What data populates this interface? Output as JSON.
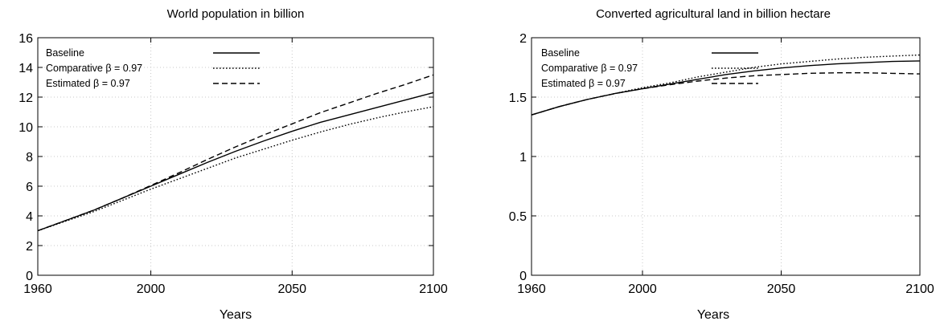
{
  "chart_data": [
    {
      "type": "line",
      "title": "World population in billion",
      "xlabel": "Years",
      "ylabel": "",
      "xlim": [
        1960,
        2100
      ],
      "ylim": [
        0,
        16
      ],
      "xticks": [
        1960,
        2000,
        2050,
        2100
      ],
      "yticks": [
        0,
        2,
        4,
        6,
        8,
        10,
        12,
        14,
        16
      ],
      "grid": true,
      "legend_position": "top-left",
      "x": [
        1960,
        1970,
        1980,
        1990,
        2000,
        2010,
        2020,
        2030,
        2040,
        2050,
        2060,
        2070,
        2080,
        2090,
        2100
      ],
      "series": [
        {
          "name": "Baseline",
          "style": "solid",
          "values": [
            3.0,
            3.7,
            4.4,
            5.2,
            6.0,
            6.8,
            7.6,
            8.35,
            9.05,
            9.7,
            10.3,
            10.8,
            11.3,
            11.8,
            12.3
          ]
        },
        {
          "name": "Comparative β = 0.97",
          "style": "dotted",
          "values": [
            3.0,
            3.65,
            4.3,
            5.05,
            5.8,
            6.5,
            7.2,
            7.9,
            8.5,
            9.1,
            9.65,
            10.15,
            10.6,
            11.0,
            11.35
          ]
        },
        {
          "name": "Estimated β = 0.97",
          "style": "dashed",
          "values": [
            3.0,
            3.7,
            4.4,
            5.2,
            6.05,
            6.9,
            7.8,
            8.65,
            9.45,
            10.2,
            10.95,
            11.6,
            12.25,
            12.85,
            13.5
          ]
        }
      ]
    },
    {
      "type": "line",
      "title": "Converted agricultural land in billion hectare",
      "xlabel": "Years",
      "ylabel": "",
      "xlim": [
        1960,
        2100
      ],
      "ylim": [
        0,
        2
      ],
      "xticks": [
        1960,
        2000,
        2050,
        2100
      ],
      "yticks": [
        0,
        0.5,
        1,
        1.5,
        2
      ],
      "grid": true,
      "legend_position": "top-left",
      "x": [
        1960,
        1970,
        1980,
        1990,
        2000,
        2010,
        2020,
        2030,
        2040,
        2050,
        2060,
        2070,
        2080,
        2090,
        2100
      ],
      "series": [
        {
          "name": "Baseline",
          "style": "solid",
          "values": [
            1.35,
            1.42,
            1.48,
            1.53,
            1.57,
            1.61,
            1.65,
            1.69,
            1.72,
            1.745,
            1.765,
            1.78,
            1.79,
            1.8,
            1.805
          ]
        },
        {
          "name": "Comparative β = 0.97",
          "style": "dotted",
          "values": [
            1.35,
            1.42,
            1.48,
            1.53,
            1.58,
            1.62,
            1.67,
            1.71,
            1.75,
            1.78,
            1.8,
            1.82,
            1.835,
            1.845,
            1.855
          ]
        },
        {
          "name": "Estimated β = 0.97",
          "style": "dashed",
          "values": [
            1.35,
            1.42,
            1.48,
            1.53,
            1.57,
            1.605,
            1.635,
            1.66,
            1.68,
            1.69,
            1.7,
            1.705,
            1.705,
            1.7,
            1.695
          ]
        }
      ]
    }
  ]
}
